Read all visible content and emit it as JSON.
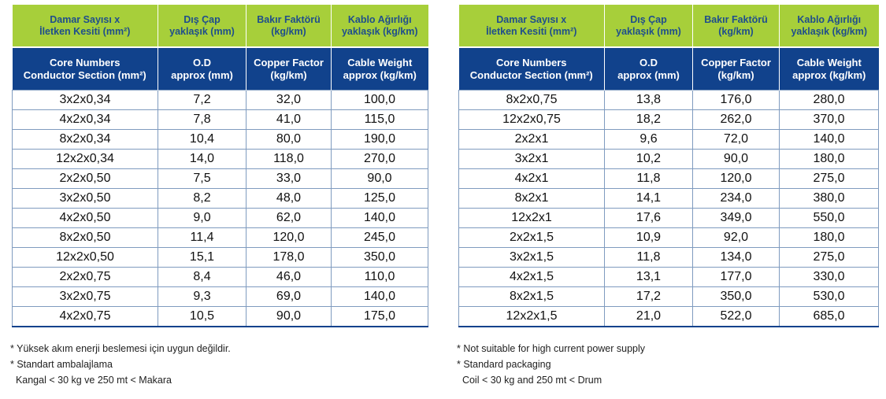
{
  "headers_tr": [
    "Damar Sayısı x\nİletken Kesiti (mm²)",
    "Dış Çap\nyaklaşık (mm)",
    "Bakır Faktörü\n(kg/km)",
    "Kablo Ağırlığı\nyaklaşık (kg/km)"
  ],
  "headers_en": [
    "Core Numbers\nConductor Section (mm²)",
    "O.D\napprox (mm)",
    "Copper Factor\n(kg/km)",
    "Cable Weight\napprox (kg/km)"
  ],
  "left_rows": [
    [
      "3x2x0,34",
      "7,2",
      "32,0",
      "100,0"
    ],
    [
      "4x2x0,34",
      "7,8",
      "41,0",
      "115,0"
    ],
    [
      "8x2x0,34",
      "10,4",
      "80,0",
      "190,0"
    ],
    [
      "12x2x0,34",
      "14,0",
      "118,0",
      "270,0"
    ],
    [
      "2x2x0,50",
      "7,5",
      "33,0",
      "90,0"
    ],
    [
      "3x2x0,50",
      "8,2",
      "48,0",
      "125,0"
    ],
    [
      "4x2x0,50",
      "9,0",
      "62,0",
      "140,0"
    ],
    [
      "8x2x0,50",
      "11,4",
      "120,0",
      "245,0"
    ],
    [
      "12x2x0,50",
      "15,1",
      "178,0",
      "350,0"
    ],
    [
      "2x2x0,75",
      "8,4",
      "46,0",
      "110,0"
    ],
    [
      "3x2x0,75",
      "9,3",
      "69,0",
      "140,0"
    ],
    [
      "4x2x0,75",
      "10,5",
      "90,0",
      "175,0"
    ]
  ],
  "right_rows": [
    [
      "8x2x0,75",
      "13,8",
      "176,0",
      "280,0"
    ],
    [
      "12x2x0,75",
      "18,2",
      "262,0",
      "370,0"
    ],
    [
      "2x2x1",
      "9,6",
      "72,0",
      "140,0"
    ],
    [
      "3x2x1",
      "10,2",
      "90,0",
      "180,0"
    ],
    [
      "4x2x1",
      "11,8",
      "120,0",
      "275,0"
    ],
    [
      "8x2x1",
      "14,1",
      "234,0",
      "380,0"
    ],
    [
      "12x2x1",
      "17,6",
      "349,0",
      "550,0"
    ],
    [
      "2x2x1,5",
      "10,9",
      "92,0",
      "180,0"
    ],
    [
      "3x2x1,5",
      "11,8",
      "134,0",
      "275,0"
    ],
    [
      "4x2x1,5",
      "13,1",
      "177,0",
      "330,0"
    ],
    [
      "8x2x1,5",
      "17,2",
      "350,0",
      "530,0"
    ],
    [
      "12x2x1,5",
      "21,0",
      "522,0",
      "685,0"
    ]
  ],
  "notes_tr": {
    "line1": "* Yüksek akım enerji beslemesi için uygun değildir.",
    "line2": "* Standart ambalajlama",
    "line3": "  Kangal < 30 kg ve 250 mt < Makara"
  },
  "notes_en": {
    "line1": "* Not suitable for high current power supply",
    "line2": "* Standard packaging",
    "line3": "  Coil < 30 kg and 250 mt < Drum"
  }
}
